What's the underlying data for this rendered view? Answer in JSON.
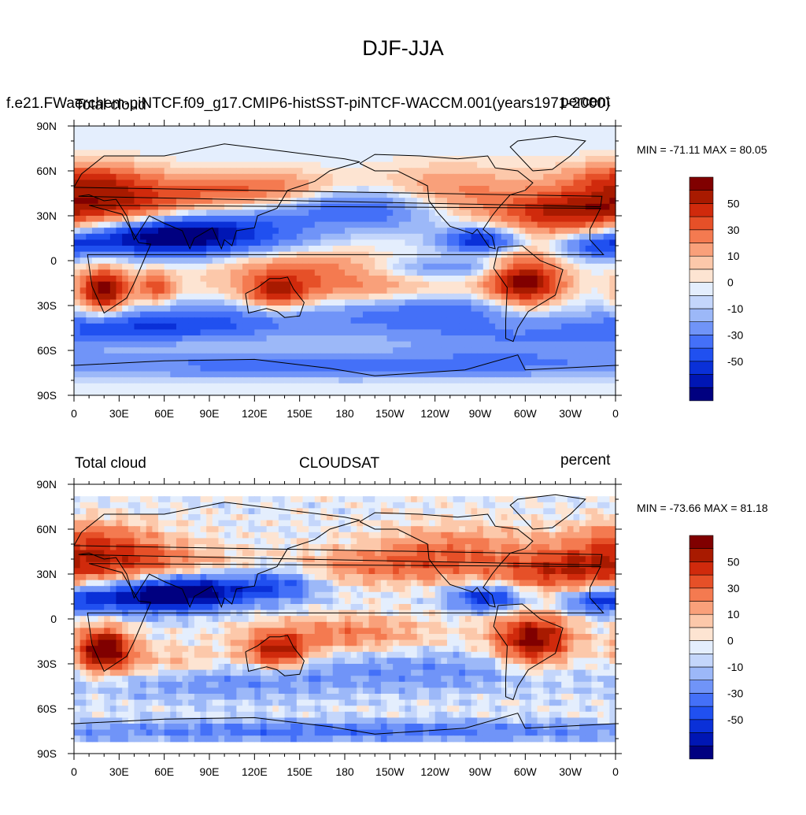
{
  "title": "DJF-JJA",
  "panels": [
    {
      "id": "model",
      "case_title": "f.e21.FWaerchem-piNTCF.f09_g17.CMIP6-histSST-piNTCF-WACCM.001(years1971-2000)",
      "variable": "Total cloud",
      "center_title": "",
      "units": "percent",
      "stats": "MIN = -71.11 MAX =  80.05",
      "min": -71.11,
      "max": 80.05
    },
    {
      "id": "obs",
      "case_title": "",
      "variable": "Total cloud",
      "center_title": "CLOUDSAT",
      "units": "percent",
      "stats": "MIN = -73.66 MAX =  81.18",
      "min": -73.66,
      "max": 81.18
    }
  ],
  "axes": {
    "x_ticks": [
      "0",
      "30E",
      "60E",
      "90E",
      "120E",
      "150E",
      "180",
      "150W",
      "120W",
      "90W",
      "60W",
      "30W",
      "0"
    ],
    "y_ticks": [
      "90N",
      "60N",
      "30N",
      "0",
      "30S",
      "60S",
      "90S"
    ]
  },
  "colorbar": {
    "labels": [
      "50",
      "30",
      "10",
      "0",
      "-10",
      "-30",
      "-50"
    ],
    "levels": [
      -70,
      -60,
      -50,
      -40,
      -30,
      -20,
      -10,
      -5,
      0,
      5,
      10,
      20,
      30,
      40,
      50,
      60,
      70
    ],
    "colors": [
      "#000080",
      "#0016b4",
      "#0a30d8",
      "#2050f0",
      "#4470f8",
      "#7094f8",
      "#9cb8f8",
      "#c4d6fb",
      "#e4eefd",
      "#fde4d2",
      "#fcc8aa",
      "#f9a07a",
      "#f47a50",
      "#e65028",
      "#d02a0c",
      "#a81a00",
      "#800000"
    ]
  },
  "features": {
    "ocean_anomalies": [
      {
        "region": "Western Pacific ITCZ",
        "sign": "negative"
      },
      {
        "region": "Indian Ocean / South Asia",
        "sign": "negative"
      },
      {
        "region": "Southern Africa",
        "sign": "positive"
      },
      {
        "region": "Amazon / Brazil",
        "sign": "positive"
      },
      {
        "region": "Northern Australia",
        "sign": "positive"
      },
      {
        "region": "Mediterranean / Sahara",
        "sign": "positive"
      },
      {
        "region": "Central America",
        "sign": "negative"
      }
    ]
  }
}
